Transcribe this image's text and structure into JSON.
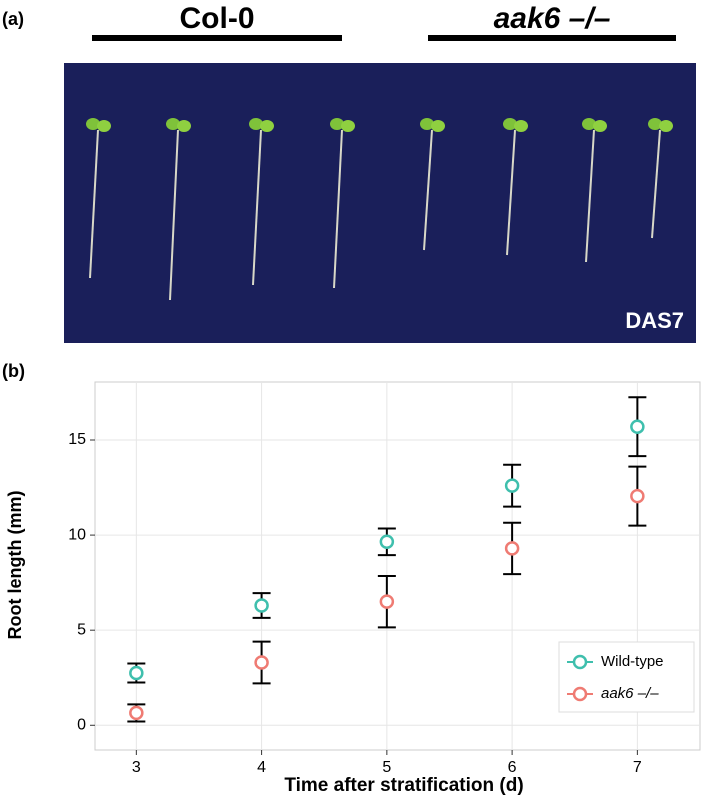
{
  "panel_a": {
    "label": "(a)",
    "groups": [
      "Col-0",
      "aak6 –/–"
    ],
    "stamp": "DAS7"
  },
  "chart_data": {
    "type": "scatter",
    "panel_label": "(b)",
    "x_label": "Time after stratification (d)",
    "y_label": "Root length (mm)",
    "x": [
      3,
      4,
      5,
      6,
      7
    ],
    "series": [
      {
        "name": "Wild-type",
        "color": "#3fbfad",
        "values": [
          2.75,
          6.3,
          9.65,
          12.6,
          15.7
        ],
        "errors": [
          0.5,
          0.65,
          0.7,
          1.1,
          1.55
        ]
      },
      {
        "name": "aak6 –/–",
        "color": "#ef7b73",
        "values": [
          0.65,
          3.3,
          6.5,
          9.3,
          12.05
        ],
        "errors": [
          0.45,
          1.1,
          1.35,
          1.35,
          1.55
        ]
      }
    ],
    "xlim": [
      2.67,
      7.5
    ],
    "ylim": [
      -1.3,
      18.05
    ],
    "xticks": [
      3,
      4,
      5,
      6,
      7
    ],
    "yticks": [
      0,
      5,
      10,
      15
    ],
    "grid": true,
    "legend": "bottom-right"
  }
}
